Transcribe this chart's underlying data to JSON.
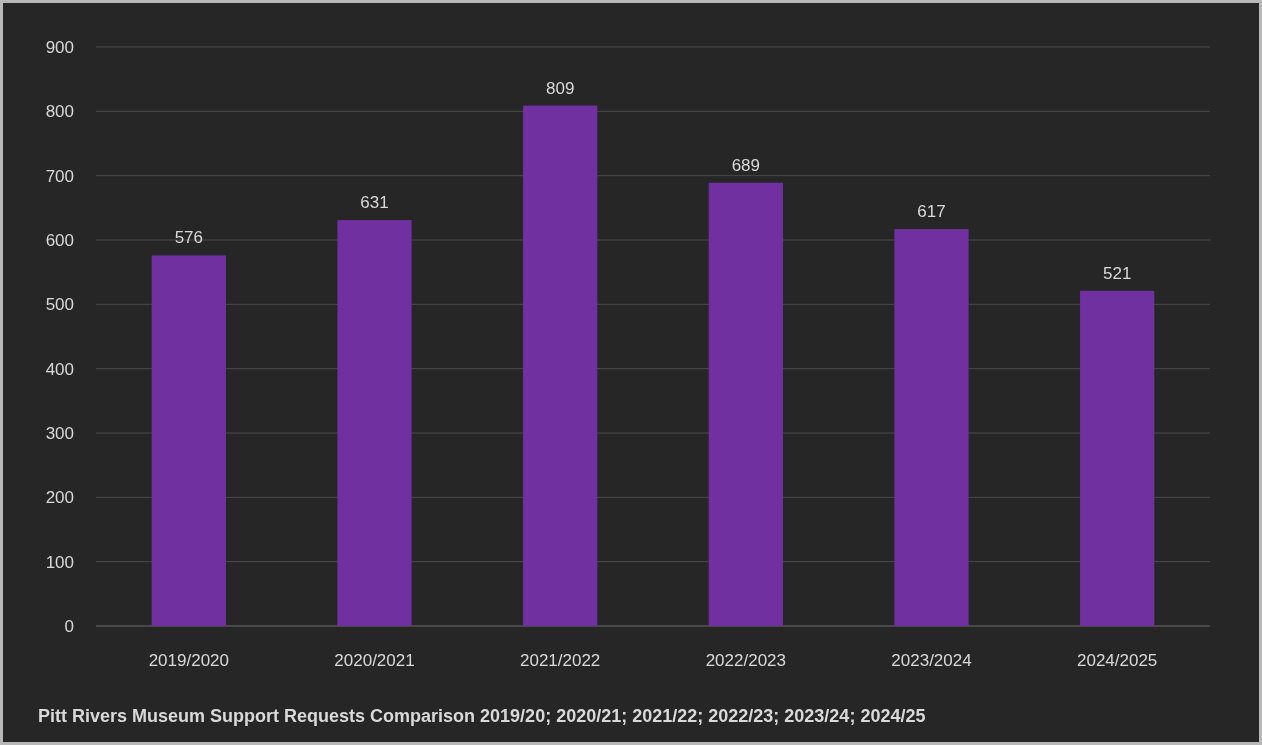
{
  "chart_data": {
    "type": "bar",
    "title": "Pitt Rivers Museum Support Requests Comparison 2019/20; 2020/21; 2021/22; 2022/23; 2023/24; 2024/25",
    "categories": [
      "2019/2020",
      "2020/2021",
      "2021/2022",
      "2022/2023",
      "2023/2024",
      "2024/2025"
    ],
    "values": [
      576,
      631,
      809,
      689,
      617,
      521
    ],
    "color": "#7030a0",
    "ylim": [
      0,
      900
    ],
    "yticks": [
      0,
      100,
      200,
      300,
      400,
      500,
      600,
      700,
      800,
      900
    ],
    "grid": "y",
    "data_labels": true
  }
}
